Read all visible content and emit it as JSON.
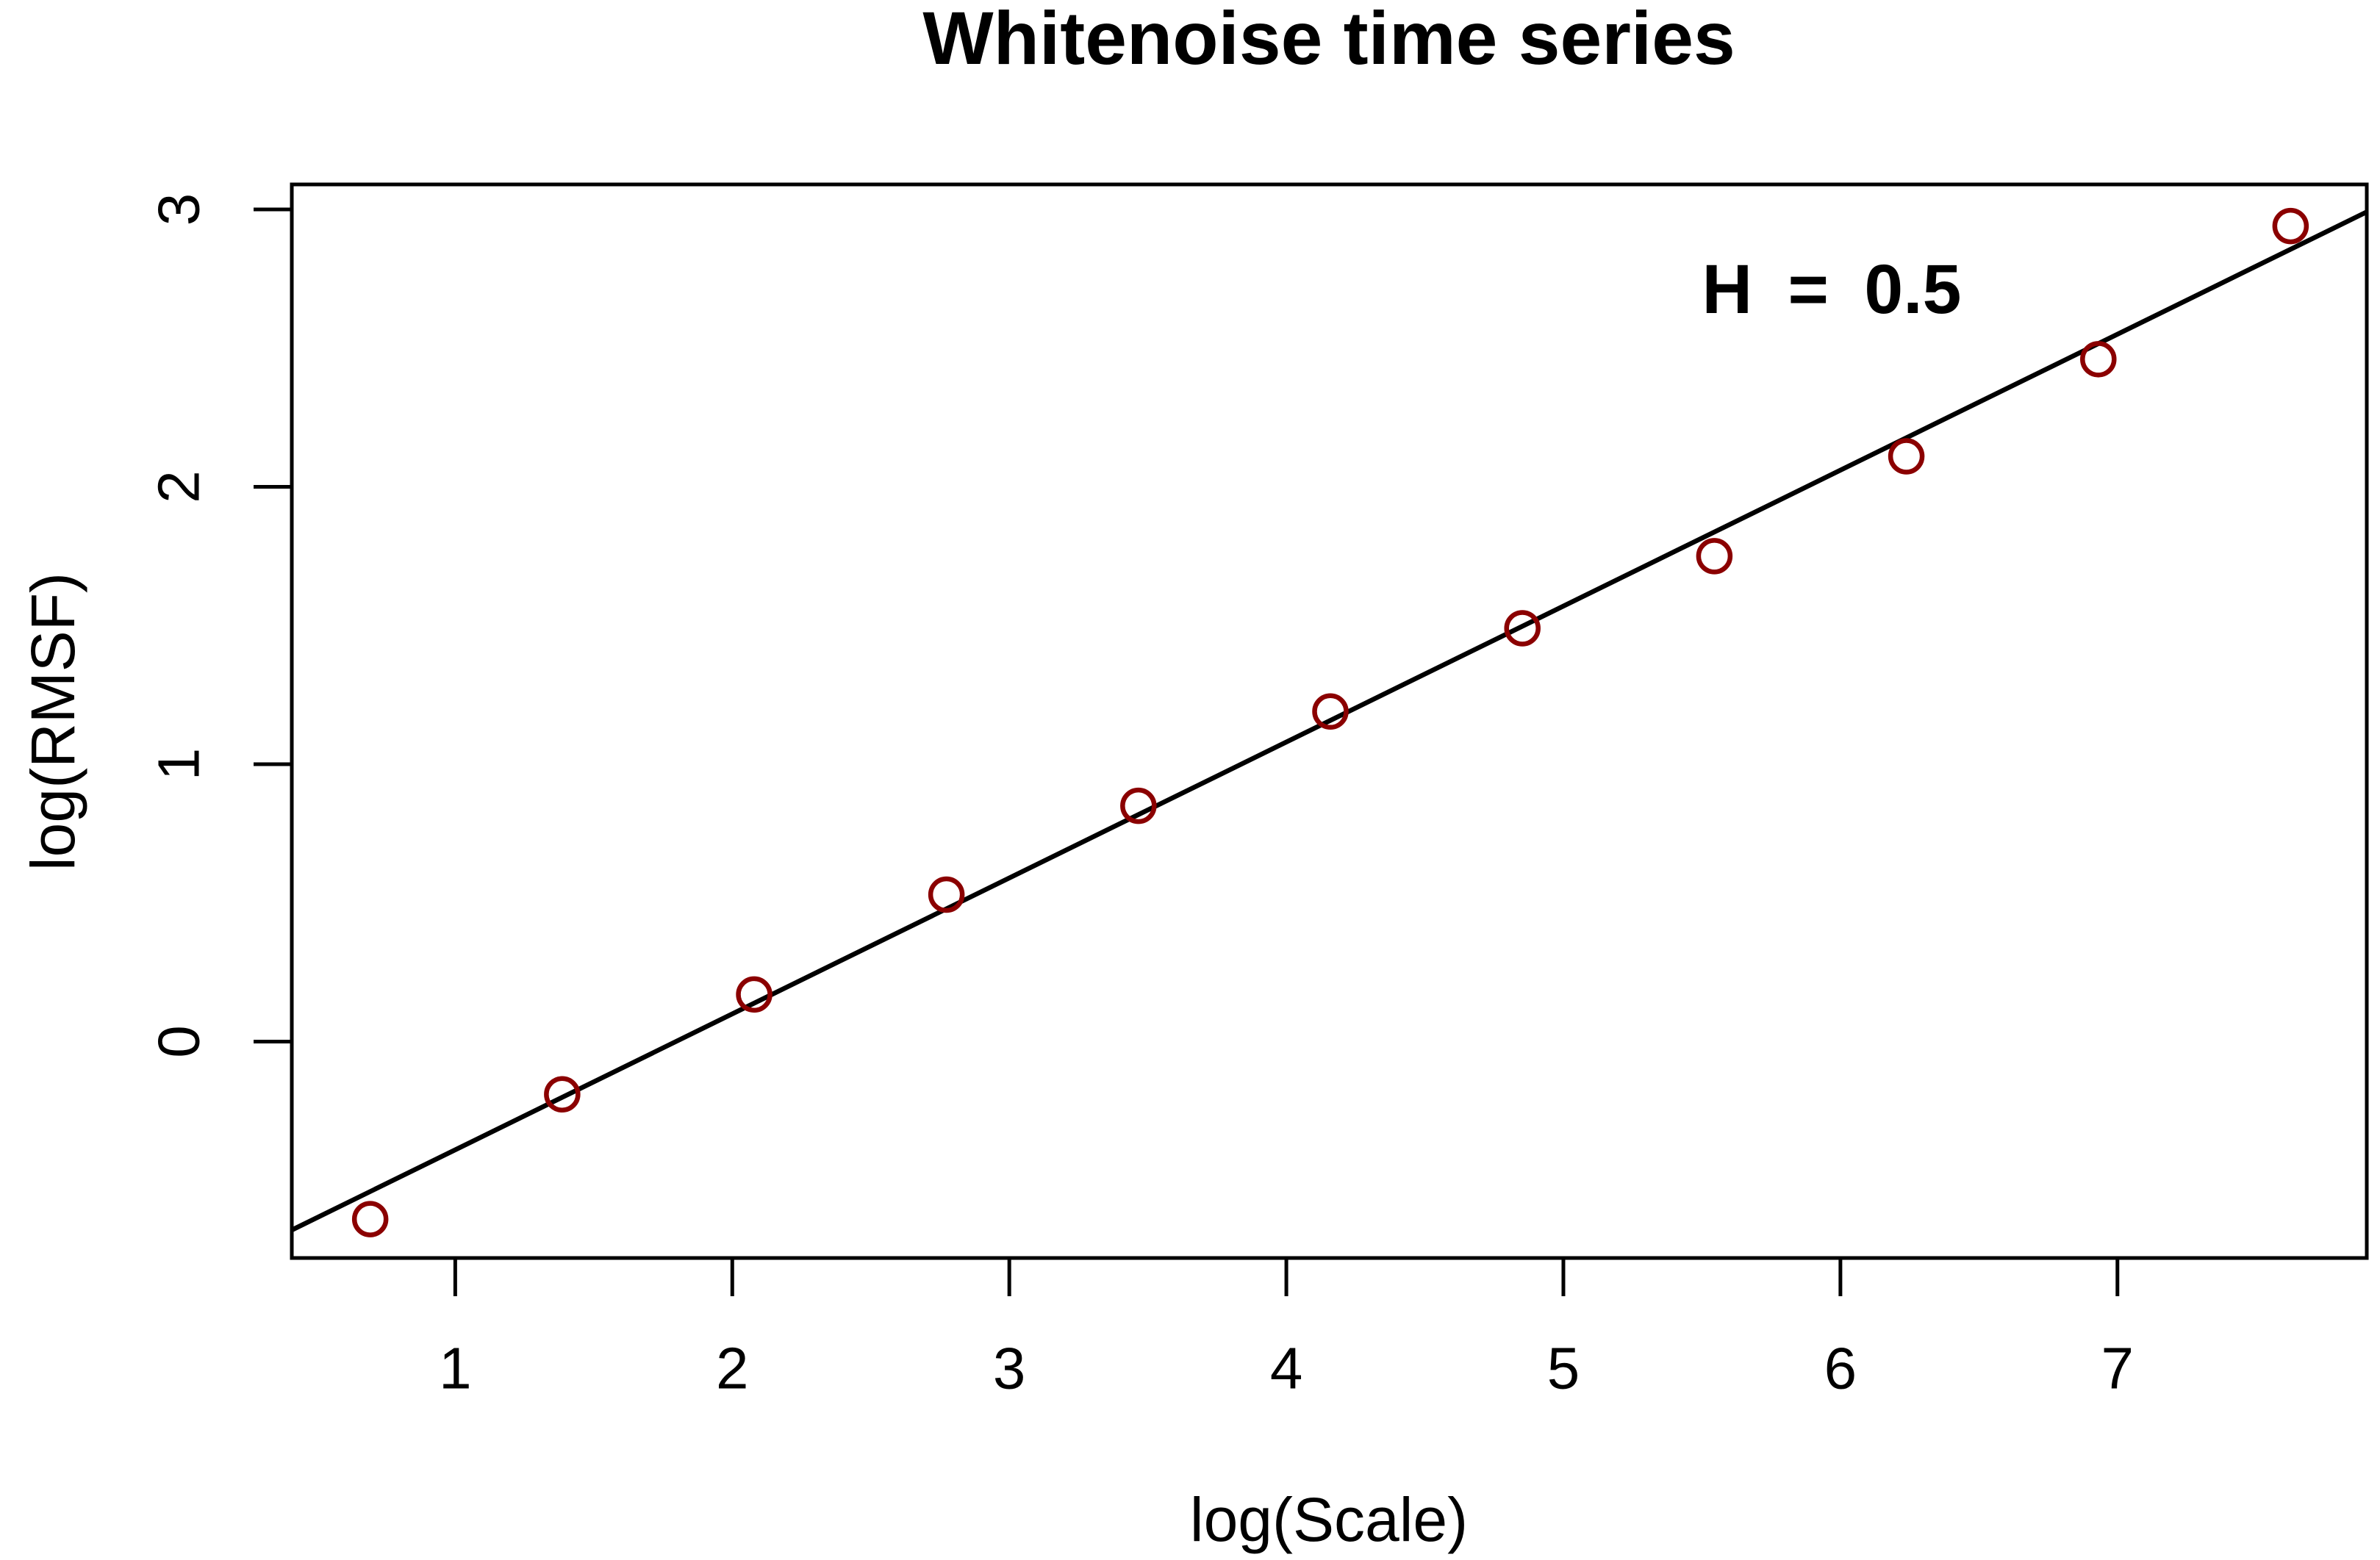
{
  "chart_data": {
    "type": "scatter",
    "title": "Whitenoise time series",
    "xlabel": "log(Scale)",
    "ylabel": "log(RMSF)",
    "annotation": "H = 0.5",
    "x": [
      0.693,
      1.386,
      2.079,
      2.773,
      3.466,
      4.159,
      4.852,
      5.545,
      6.238,
      6.931,
      7.625
    ],
    "y": [
      -0.64,
      -0.19,
      0.17,
      0.53,
      0.85,
      1.19,
      1.49,
      1.75,
      2.11,
      2.46,
      2.94
    ],
    "x_tick_labels": [
      "1",
      "2",
      "3",
      "4",
      "5",
      "6",
      "7"
    ],
    "x_ticks": [
      1,
      2,
      3,
      4,
      5,
      6,
      7
    ],
    "y_tick_labels": [
      "0",
      "1",
      "2",
      "3"
    ],
    "y_ticks": [
      0,
      1,
      2,
      3
    ],
    "xlim": [
      0.41,
      7.9
    ],
    "ylim": [
      -0.78,
      3.09
    ],
    "fit_line": {
      "slope": 0.49,
      "intercept": -0.88
    },
    "point_color": "#8B0000",
    "line_color": "#000000",
    "grid": false,
    "legend": false
  }
}
